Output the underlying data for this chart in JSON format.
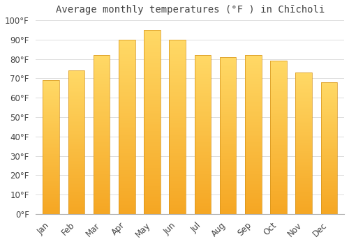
{
  "title": "Average monthly temperatures (°F ) in Chīcholi",
  "months": [
    "Jan",
    "Feb",
    "Mar",
    "Apr",
    "May",
    "Jun",
    "Jul",
    "Aug",
    "Sep",
    "Oct",
    "Nov",
    "Dec"
  ],
  "values": [
    69,
    74,
    82,
    90,
    95,
    90,
    82,
    81,
    82,
    79,
    73,
    68
  ],
  "bar_color_top": "#FFD966",
  "bar_color_bottom": "#F5A623",
  "bar_edge_color": "#D4921A",
  "background_color": "#FFFFFF",
  "grid_color": "#DDDDDD",
  "ylim": [
    0,
    100
  ],
  "ytick_step": 10,
  "title_fontsize": 10,
  "tick_fontsize": 8.5,
  "text_color": "#444444"
}
